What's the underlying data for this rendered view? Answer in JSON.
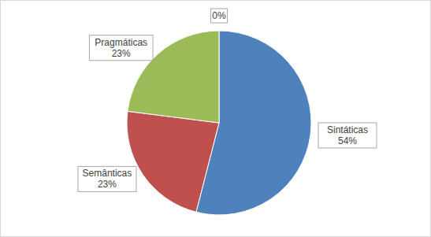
{
  "chart_data": {
    "type": "pie",
    "categories": [
      "Sintáticas",
      "Semânticas",
      "Pragmáticas",
      null
    ],
    "values": [
      54,
      23,
      23,
      0
    ],
    "value_labels": [
      "54%",
      "23%",
      "23%",
      "0%"
    ],
    "colors": [
      "#4f81bd",
      "#c0504d",
      "#9bbb59",
      "#8064a2"
    ],
    "data_labels": true
  }
}
